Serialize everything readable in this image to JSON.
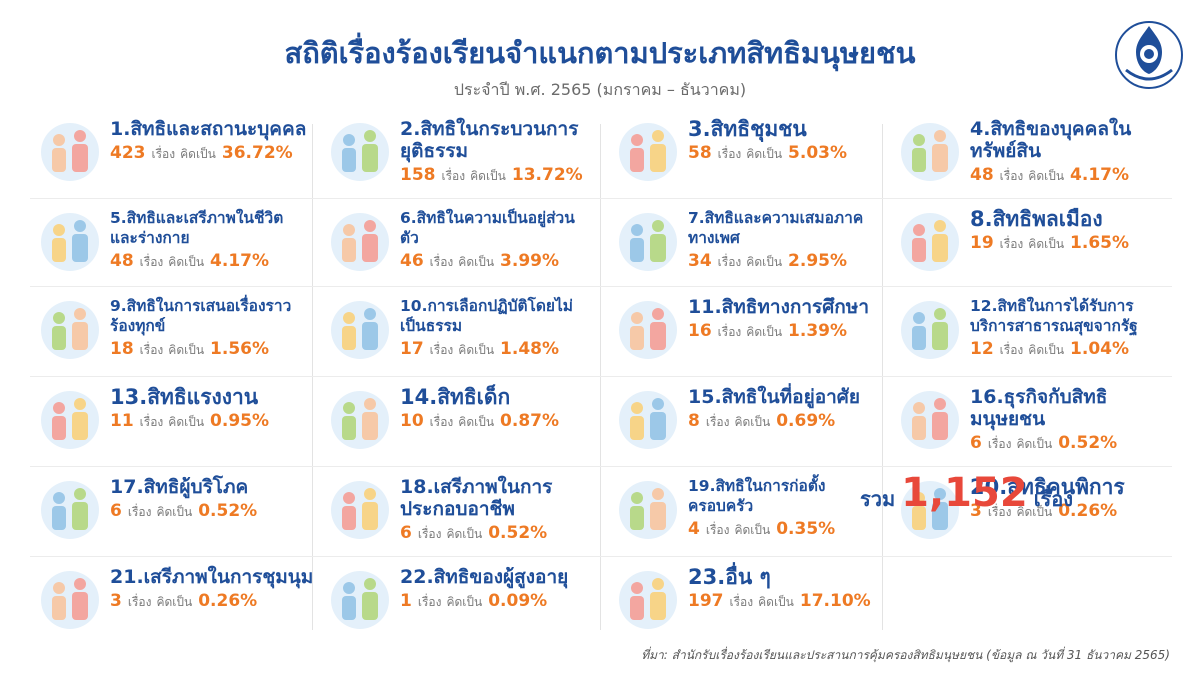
{
  "title": "สถิติเรื่องร้องเรียนจำแนกตามประเภทสิทธิมนุษยชน",
  "subtitle": "ประจำปี พ.ศ. 2565 (มกราคม – ธันวาคม)",
  "unit_label": "เรื่อง",
  "pct_label": "คิดเป็น",
  "categories": [
    {
      "label": "1.สิทธิและสถานะบุคคล",
      "count": "423",
      "pct": "36.72%",
      "icon": "id-card-people-icon"
    },
    {
      "label": "2.สิทธิในกระบวนการยุติธรรม",
      "count": "158",
      "pct": "13.72%",
      "icon": "gavel-icon"
    },
    {
      "label": "3.สิทธิชุมชน",
      "count": "58",
      "pct": "5.03%",
      "icon": "community-house-icon"
    },
    {
      "label": "4.สิทธิของบุคคลในทรัพย์สิน",
      "count": "48",
      "pct": "4.17%",
      "icon": "property-money-icon"
    },
    {
      "label": "5.สิทธิและเสรีภาพในชีวิตและร่างกาย",
      "count": "48",
      "pct": "4.17%",
      "icon": "body-life-icon"
    },
    {
      "label": "6.สิทธิในความเป็นอยู่ส่วนตัว",
      "count": "46",
      "pct": "3.99%",
      "icon": "privacy-house-icon"
    },
    {
      "label": "7.สิทธิและความเสมอภาคทางเพศ",
      "count": "34",
      "pct": "2.95%",
      "icon": "rainbow-flag-icon"
    },
    {
      "label": "8.สิทธิพลเมือง",
      "count": "19",
      "pct": "1.65%",
      "icon": "citizen-hands-icon"
    },
    {
      "label": "9.สิทธิในการเสนอเรื่องราวร้องทุกข์",
      "count": "18",
      "pct": "1.56%",
      "icon": "megaphone-icon"
    },
    {
      "label": "10.การเลือกปฏิบัติโดยไม่เป็นธรรม",
      "count": "17",
      "pct": "1.48%",
      "icon": "scale-icon"
    },
    {
      "label": "11.สิทธิทางการศึกษา",
      "count": "16",
      "pct": "1.39%",
      "icon": "graduation-cap-icon"
    },
    {
      "label": "12.สิทธิในการได้รับการบริการสาธารณสุขจากรัฐ",
      "count": "12",
      "pct": "1.04%",
      "icon": "health-service-icon"
    },
    {
      "label": "13.สิทธิแรงงาน",
      "count": "11",
      "pct": "0.95%",
      "icon": "labor-tools-icon"
    },
    {
      "label": "14.สิทธิเด็ก",
      "count": "10",
      "pct": "0.87%",
      "icon": "child-hands-icon"
    },
    {
      "label": "15.สิทธิในที่อยู่อาศัย",
      "count": "8",
      "pct": "0.69%",
      "icon": "housing-icon"
    },
    {
      "label": "16.ธุรกิจกับสิทธิมนุษยชน",
      "count": "6",
      "pct": "0.52%",
      "icon": "business-icon"
    },
    {
      "label": "17.สิทธิผู้บริโภค",
      "count": "6",
      "pct": "0.52%",
      "icon": "consumer-shield-icon"
    },
    {
      "label": "18.เสรีภาพในการประกอบอาชีพ",
      "count": "6",
      "pct": "0.52%",
      "icon": "occupation-icon"
    },
    {
      "label": "19.สิทธิในการก่อตั้งครอบครัว",
      "count": "4",
      "pct": "0.35%",
      "icon": "family-icon"
    },
    {
      "label": "20.สิทธิคนพิการ",
      "count": "3",
      "pct": "0.26%",
      "icon": "wheelchair-icon"
    },
    {
      "label": "21.เสรีภาพในการชุมนุม",
      "count": "3",
      "pct": "0.26%",
      "icon": "assembly-icon"
    },
    {
      "label": "22.สิทธิของผู้สูงอายุ",
      "count": "1",
      "pct": "0.09%",
      "icon": "elderly-icon"
    },
    {
      "label": "23.อื่น ๆ",
      "count": "197",
      "pct": "17.10%",
      "icon": "dove-icon"
    }
  ],
  "total": {
    "prefix": "รวม",
    "value": "1,152",
    "suffix": "เรื่อง"
  },
  "source": "ที่มา: สำนักรับเรื่องร้องเรียนและประสานการคุ้มครองสิทธิมนุษยชน (ข้อมูล ณ วันที่ 31 ธันวาคม 2565)",
  "colors": {
    "title": "#1f4e99",
    "accent": "#ee7a24",
    "total": "#e8483a"
  }
}
